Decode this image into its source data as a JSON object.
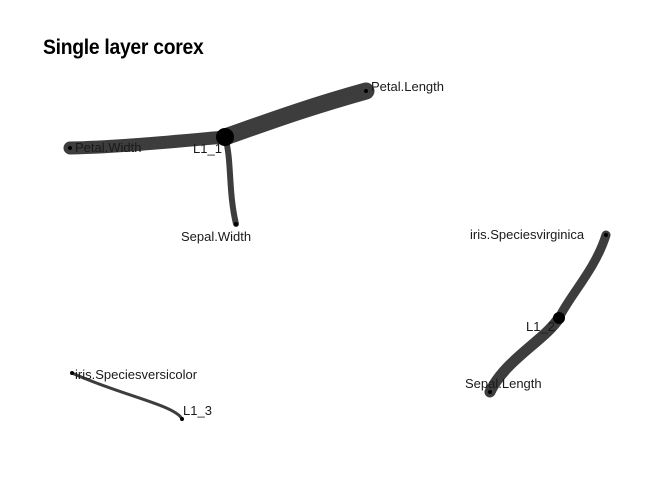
{
  "title": "Single layer corex",
  "colors": {
    "edge": "#3d3d3d",
    "node": "#000000",
    "label": "#1a1a1a",
    "background": "#ffffff"
  },
  "nodes": {
    "L1_1": "L1_1",
    "L1_2": "L1_2",
    "L1_3": "L1_3",
    "petal_length": "Petal.Length",
    "petal_width": "Petal.Width",
    "sepal_width": "Sepal.Width",
    "sepal_length": "Sepal.Length",
    "virginica": "iris.Speciesvirginica",
    "versicolor": "iris.Speciesversicolor"
  },
  "edges": [
    {
      "from": "L1_1",
      "to": "Petal.Length"
    },
    {
      "from": "L1_1",
      "to": "Petal.Width"
    },
    {
      "from": "L1_1",
      "to": "Sepal.Width"
    },
    {
      "from": "L1_2",
      "to": "iris.Speciesvirginica"
    },
    {
      "from": "L1_2",
      "to": "Sepal.Length"
    },
    {
      "from": "L1_3",
      "to": "iris.Speciesversicolor"
    }
  ]
}
